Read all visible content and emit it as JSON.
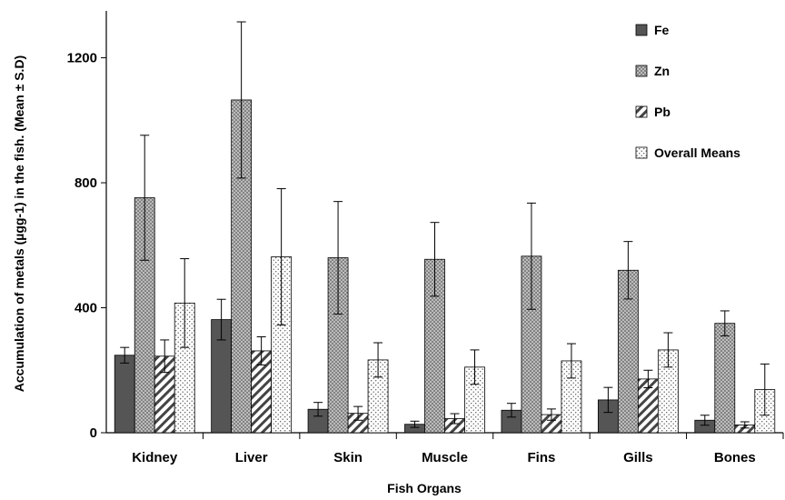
{
  "chart_data": {
    "type": "bar",
    "title": "",
    "xlabel": "Fish Organs",
    "ylabel": "Accumulation of metals (µgg-1) in the fish. (Mean ± S.D)",
    "ylim": [
      0,
      1350
    ],
    "yticks": [
      0,
      400,
      800,
      1200
    ],
    "grid": false,
    "legend_position": "top-right",
    "categories": [
      "Kidney",
      "Liver",
      "Skin",
      "Muscle",
      "Fins",
      "Gills",
      "Bones"
    ],
    "series": [
      {
        "name": "Fe",
        "values": [
          248,
          362,
          75,
          27,
          72,
          105,
          40
        ],
        "errors": [
          25,
          65,
          22,
          10,
          22,
          40,
          16
        ],
        "fill": "solid",
        "color": "#555555"
      },
      {
        "name": "Zn",
        "values": [
          752,
          1065,
          560,
          555,
          565,
          520,
          350
        ],
        "errors": [
          200,
          250,
          180,
          118,
          170,
          92,
          40
        ],
        "fill": "crosshatch",
        "color": "#999999"
      },
      {
        "name": "Pb",
        "values": [
          245,
          262,
          62,
          45,
          58,
          172,
          25
        ],
        "errors": [
          52,
          45,
          22,
          16,
          18,
          28,
          10
        ],
        "fill": "diagonal",
        "color": "#444444"
      },
      {
        "name": "Overall Means",
        "values": [
          415,
          563,
          233,
          210,
          230,
          265,
          138
        ],
        "errors": [
          142,
          218,
          55,
          55,
          55,
          55,
          82
        ],
        "fill": "dots",
        "color": "#666666"
      }
    ]
  }
}
